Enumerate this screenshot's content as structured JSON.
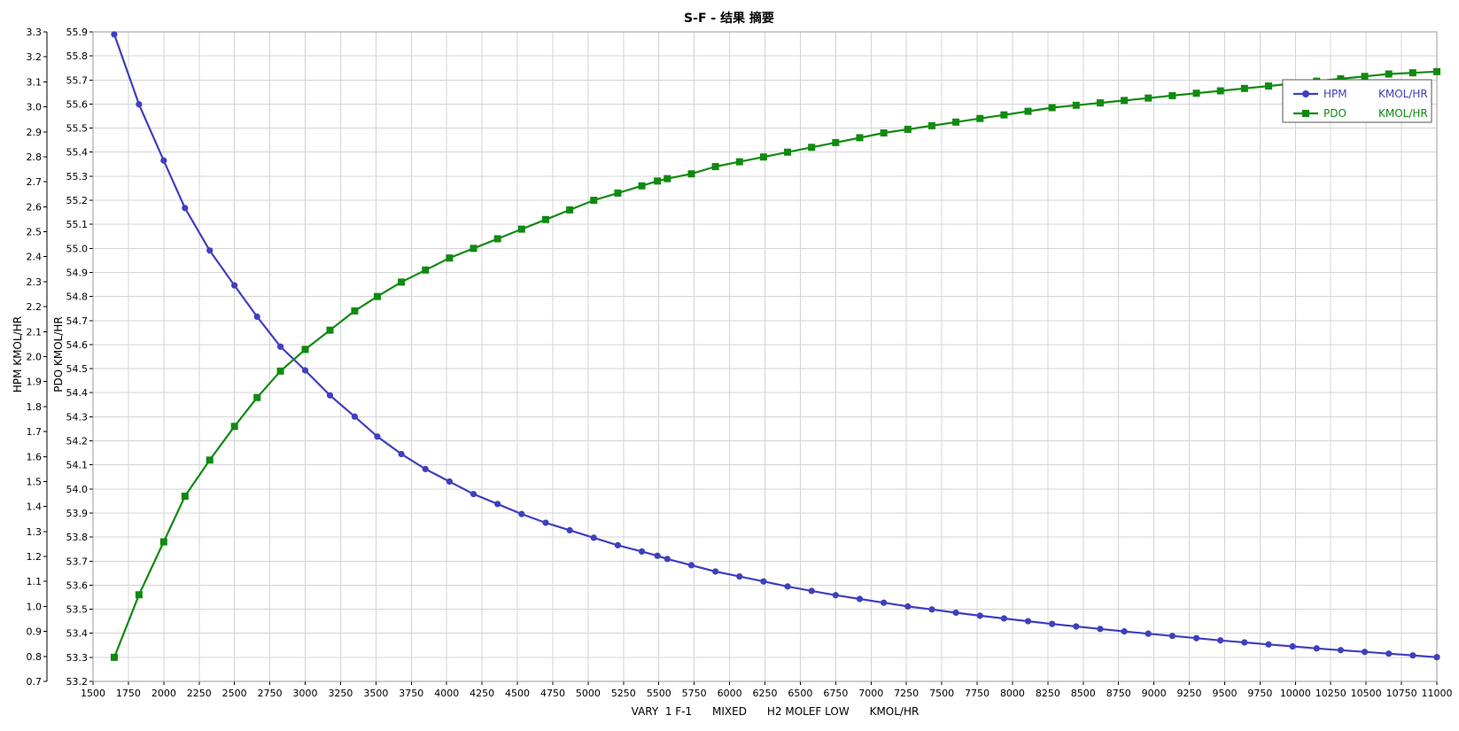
{
  "chart_data": {
    "type": "line",
    "title": "S-F - 结果 摘要",
    "xlabel": "VARY  1 F-1      MIXED      H2 MOLEF LOW      KMOL/HR",
    "xlim": [
      1500,
      11000
    ],
    "x_ticks": [
      "1500",
      "1750",
      "2000",
      "2250",
      "2500",
      "2750",
      "3000",
      "3250",
      "3500",
      "3750",
      "4000",
      "4250",
      "4500",
      "4750",
      "5000",
      "5250",
      "5500",
      "5750",
      "6000",
      "6250",
      "6500",
      "6750",
      "7000",
      "7250",
      "7500",
      "7750",
      "8000",
      "8250",
      "8500",
      "8750",
      "9000",
      "9250",
      "9500",
      "9750",
      "10000",
      "10250",
      "10500",
      "10750",
      "11000"
    ],
    "y_axes": [
      {
        "name": "HPM",
        "label": "HPM      KMOL/HR",
        "range": [
          0.7,
          3.3
        ],
        "ticks": [
          "0.7",
          "0.8",
          "0.9",
          "1.0",
          "1.1",
          "1.2",
          "1.3",
          "1.4",
          "1.5",
          "1.6",
          "1.7",
          "1.8",
          "1.9",
          "2.0",
          "2.1",
          "2.2",
          "2.3",
          "2.4",
          "2.5",
          "2.6",
          "2.7",
          "2.8",
          "2.9",
          "3.0",
          "3.1",
          "3.2",
          "3.3"
        ]
      },
      {
        "name": "PDO",
        "label": "PDO      KMOL/HR",
        "range": [
          53.2,
          55.9
        ],
        "ticks": [
          "53.2",
          "53.3",
          "53.4",
          "53.5",
          "53.6",
          "53.7",
          "53.8",
          "53.9",
          "54.0",
          "54.1",
          "54.2",
          "54.3",
          "54.4",
          "54.5",
          "54.6",
          "54.7",
          "54.8",
          "54.9",
          "55.0",
          "55.1",
          "55.2",
          "55.3",
          "55.4",
          "55.5",
          "55.6",
          "55.7",
          "55.8",
          "55.9"
        ]
      }
    ],
    "grid": true,
    "legend_position": "top-right",
    "series": [
      {
        "name": "HPM",
        "unit": "KMOL/HR",
        "axis": 0,
        "marker": "circle",
        "color": "#3f3fbf",
        "x": [
          1650,
          1825,
          2000,
          2150,
          2325,
          2500,
          2660,
          2825,
          3000,
          3175,
          3350,
          3510,
          3680,
          3850,
          4020,
          4190,
          4360,
          4530,
          4700,
          4870,
          5040,
          5210,
          5380,
          5490,
          5560,
          5730,
          5900,
          6070,
          6240,
          6410,
          6580,
          6750,
          6920,
          7090,
          7260,
          7430,
          7600,
          7770,
          7940,
          8110,
          8280,
          8450,
          8620,
          8790,
          8960,
          9130,
          9300,
          9470,
          9640,
          9810,
          9980,
          10150,
          10320,
          10490,
          10660,
          10830,
          11000
        ],
        "y": [
          3.29,
          3.01,
          2.785,
          2.595,
          2.425,
          2.285,
          2.16,
          2.04,
          1.945,
          1.845,
          1.76,
          1.68,
          1.61,
          1.55,
          1.5,
          1.45,
          1.41,
          1.37,
          1.335,
          1.305,
          1.275,
          1.245,
          1.22,
          1.203,
          1.19,
          1.165,
          1.14,
          1.12,
          1.1,
          1.08,
          1.062,
          1.045,
          1.03,
          1.015,
          1.0,
          0.988,
          0.975,
          0.963,
          0.952,
          0.941,
          0.93,
          0.92,
          0.91,
          0.9,
          0.891,
          0.882,
          0.873,
          0.864,
          0.856,
          0.848,
          0.84,
          0.832,
          0.825,
          0.818,
          0.811,
          0.804,
          0.797
        ]
      },
      {
        "name": "PDO",
        "unit": "KMOL/HR",
        "axis": 1,
        "marker": "square",
        "color": "#108a10",
        "x": [
          1650,
          1825,
          2000,
          2150,
          2325,
          2500,
          2660,
          2825,
          3000,
          3175,
          3350,
          3510,
          3680,
          3850,
          4020,
          4190,
          4360,
          4530,
          4700,
          4870,
          5040,
          5210,
          5380,
          5490,
          5560,
          5730,
          5900,
          6070,
          6240,
          6410,
          6580,
          6750,
          6920,
          7090,
          7260,
          7430,
          7600,
          7770,
          7940,
          8110,
          8280,
          8450,
          8620,
          8790,
          8960,
          9130,
          9300,
          9470,
          9640,
          9810,
          9980,
          10150,
          10320,
          10490,
          10660,
          10830,
          11000
        ],
        "y": [
          53.3,
          53.56,
          53.78,
          53.97,
          54.12,
          54.26,
          54.38,
          54.49,
          54.58,
          54.66,
          54.74,
          54.8,
          54.86,
          54.91,
          54.96,
          55.0,
          55.04,
          55.08,
          55.12,
          55.16,
          55.2,
          55.23,
          55.26,
          55.28,
          55.29,
          55.31,
          55.34,
          55.36,
          55.38,
          55.4,
          55.42,
          55.44,
          55.46,
          55.48,
          55.495,
          55.51,
          55.525,
          55.54,
          55.555,
          55.57,
          55.585,
          55.595,
          55.605,
          55.615,
          55.625,
          55.635,
          55.645,
          55.655,
          55.665,
          55.675,
          55.685,
          55.695,
          55.705,
          55.715,
          55.725,
          55.73,
          55.735
        ]
      }
    ]
  }
}
